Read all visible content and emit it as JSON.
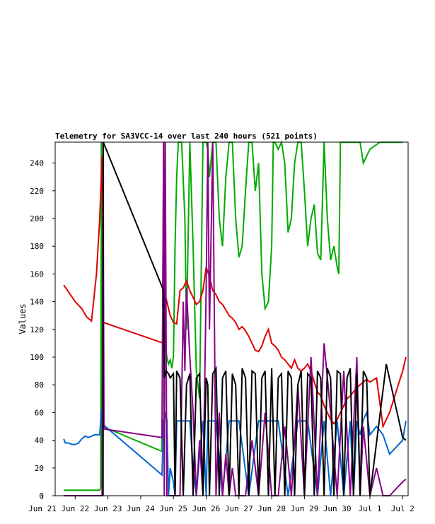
{
  "chart_data": {
    "type": "line",
    "title": "Telemetry for SA3VCC-14 over last 240 hours (521 points)",
    "xlabel": "",
    "ylabel": "Values",
    "ylim": [
      0,
      255
    ],
    "xlim": [
      0,
      11.6
    ],
    "yticks": [
      0,
      20,
      40,
      60,
      80,
      100,
      120,
      140,
      160,
      180,
      200,
      220,
      240
    ],
    "xticks": [
      {
        "x": 0,
        "label": "Jun 21"
      },
      {
        "x": 1,
        "label": "Jun 22"
      },
      {
        "x": 2,
        "label": "Jun 23"
      },
      {
        "x": 3,
        "label": "Jun 24"
      },
      {
        "x": 4,
        "label": "Jun 25"
      },
      {
        "x": 5,
        "label": "Jun 26"
      },
      {
        "x": 6,
        "label": "Jun 27"
      },
      {
        "x": 7,
        "label": "Jun 28"
      },
      {
        "x": 8,
        "label": "Jun 29"
      },
      {
        "x": 9,
        "label": "Jun 30"
      },
      {
        "x": 10,
        "label": "Jul 1"
      },
      {
        "x": 11,
        "label": "Jul 2"
      }
    ],
    "grid": false,
    "series": [
      {
        "color": "#00aa00",
        "x": [
          0.65,
          1.75,
          1.78,
          1.8,
          1.83,
          3.65,
          3.7,
          3.72,
          3.75,
          3.8,
          3.85,
          3.9,
          3.95,
          4.0,
          4.05,
          4.1,
          4.15,
          4.25,
          4.35,
          4.4,
          4.5,
          4.6,
          4.7,
          4.8,
          4.9,
          5.0,
          5.05,
          5.1,
          5.2,
          5.3,
          5.4,
          5.5,
          5.6,
          5.7,
          5.8,
          5.9,
          6.0,
          6.1,
          6.2,
          6.3,
          6.4,
          6.5,
          6.6,
          6.7,
          6.8,
          6.9,
          7.0,
          7.05,
          7.1,
          7.2,
          7.3,
          7.4,
          7.5,
          7.6,
          7.7,
          7.8,
          7.9,
          8.0,
          8.1,
          8.2,
          8.3,
          8.4,
          8.5,
          8.6,
          8.7,
          8.8,
          8.9,
          9.0,
          9.05,
          9.1,
          9.3,
          9.5,
          9.7,
          9.8,
          10.0,
          10.3,
          10.6,
          11.0
        ],
        "values": [
          4,
          4,
          6,
          255,
          50,
          32,
          255,
          150,
          110,
          100,
          95,
          98,
          92,
          100,
          180,
          230,
          255,
          255,
          200,
          120,
          255,
          180,
          90,
          70,
          255,
          255,
          250,
          230,
          255,
          255,
          200,
          180,
          230,
          255,
          255,
          200,
          172,
          180,
          220,
          255,
          255,
          220,
          240,
          160,
          135,
          140,
          180,
          255,
          255,
          250,
          255,
          240,
          190,
          200,
          240,
          255,
          255,
          220,
          180,
          200,
          210,
          175,
          170,
          255,
          200,
          170,
          180,
          165,
          160,
          255,
          255,
          255,
          255,
          240,
          250,
          255,
          255,
          255
        ]
      },
      {
        "color": "#dd0000",
        "x": [
          0.65,
          0.8,
          1.0,
          1.2,
          1.35,
          1.5,
          1.65,
          1.75,
          1.82,
          1.86,
          3.7,
          3.72,
          3.8,
          3.9,
          4.0,
          4.1,
          4.2,
          4.3,
          4.4,
          4.5,
          4.6,
          4.7,
          4.8,
          4.9,
          5.0,
          5.1,
          5.2,
          5.3,
          5.4,
          5.5,
          5.6,
          5.7,
          5.8,
          5.9,
          6.0,
          6.1,
          6.2,
          6.3,
          6.4,
          6.5,
          6.6,
          6.7,
          6.8,
          6.9,
          7.0,
          7.1,
          7.2,
          7.3,
          7.4,
          7.5,
          7.6,
          7.7,
          7.8,
          7.9,
          8.0,
          8.1,
          8.2,
          8.3,
          8.4,
          8.5,
          8.6,
          8.7,
          8.8,
          8.9,
          9.0,
          9.1,
          9.2,
          9.3,
          9.4,
          9.5,
          9.6,
          9.7,
          9.8,
          9.9,
          10.0,
          10.2,
          10.4,
          10.6,
          10.8,
          11.0,
          11.1
        ],
        "values": [
          152,
          147,
          140,
          135,
          129,
          126,
          160,
          200,
          245,
          125,
          110,
          148,
          140,
          130,
          125,
          124,
          148,
          150,
          155,
          148,
          143,
          138,
          140,
          148,
          165,
          158,
          148,
          145,
          140,
          138,
          134,
          130,
          128,
          125,
          120,
          122,
          119,
          115,
          110,
          105,
          104,
          108,
          115,
          120,
          110,
          108,
          105,
          100,
          98,
          95,
          92,
          98,
          92,
          90,
          92,
          95,
          90,
          82,
          75,
          72,
          65,
          60,
          55,
          52,
          55,
          60,
          65,
          70,
          72,
          75,
          78,
          80,
          82,
          84,
          82,
          85,
          50,
          60,
          75,
          90,
          100
        ]
      },
      {
        "color": "#0066cc",
        "x": [
          0.65,
          0.7,
          0.8,
          0.9,
          1.0,
          1.1,
          1.2,
          1.3,
          1.4,
          1.5,
          1.6,
          1.75,
          1.8,
          1.82,
          3.65,
          3.7,
          3.72,
          3.75,
          3.8,
          3.85,
          3.9,
          4.0,
          4.05,
          4.1,
          4.3,
          4.5,
          4.6,
          4.7,
          4.8,
          4.9,
          5.0,
          5.05,
          5.1,
          5.3,
          5.5,
          5.7,
          6.0,
          6.3,
          6.6,
          6.9,
          7.2,
          7.5,
          7.8,
          8.1,
          8.4,
          8.6,
          8.8,
          9.0,
          9.2,
          9.4,
          9.5,
          9.6,
          9.7,
          9.8,
          9.9,
          10.0,
          10.2,
          10.4,
          10.6,
          10.8,
          11.0,
          11.1
        ],
        "values": [
          41,
          38,
          38,
          37,
          37,
          38,
          41,
          43,
          42,
          43,
          44,
          44,
          62,
          52,
          15,
          55,
          50,
          60,
          55,
          0,
          20,
          10,
          0,
          54,
          54,
          54,
          20,
          0,
          30,
          54,
          0,
          54,
          54,
          54,
          0,
          54,
          54,
          0,
          54,
          54,
          54,
          0,
          54,
          54,
          0,
          54,
          0,
          54,
          0,
          54,
          0,
          54,
          44,
          55,
          60,
          44,
          50,
          44,
          30,
          35,
          40,
          54
        ]
      },
      {
        "color": "#880088",
        "x": [
          0.65,
          1.82,
          1.85,
          1.88,
          1.9,
          3.65,
          3.7,
          3.72,
          3.75,
          3.8,
          3.9,
          4.0,
          4.1,
          4.2,
          4.3,
          4.35,
          4.4,
          4.5,
          4.6,
          4.7,
          4.8,
          4.9,
          5.0,
          5.05,
          5.1,
          5.2,
          5.3,
          5.4,
          5.5,
          5.6,
          5.7,
          5.8,
          5.9,
          6.0,
          6.2,
          6.4,
          6.6,
          6.8,
          7.0,
          7.2,
          7.4,
          7.6,
          7.8,
          8.0,
          8.2,
          8.4,
          8.6,
          8.8,
          9.0,
          9.2,
          9.4,
          9.6,
          9.7,
          9.8,
          10.0,
          10.2,
          10.4,
          10.6,
          10.8,
          11.0,
          11.1
        ],
        "values": [
          0,
          0,
          255,
          50,
          48,
          42,
          255,
          0,
          255,
          0,
          0,
          0,
          0,
          0,
          140,
          90,
          150,
          100,
          60,
          0,
          40,
          0,
          150,
          255,
          120,
          255,
          0,
          60,
          0,
          30,
          0,
          20,
          0,
          0,
          0,
          40,
          0,
          60,
          0,
          0,
          50,
          0,
          80,
          0,
          100,
          0,
          110,
          60,
          0,
          90,
          0,
          100,
          0,
          50,
          0,
          20,
          0,
          0,
          5,
          10,
          12
        ]
      },
      {
        "color": "#000000",
        "x": [
          1.85,
          1.86,
          3.7,
          3.72,
          3.78,
          3.85,
          3.9,
          4.0,
          4.05,
          4.1,
          4.2,
          4.3,
          4.4,
          4.5,
          4.6,
          4.7,
          4.8,
          4.9,
          5.0,
          5.05,
          5.1,
          5.2,
          5.3,
          5.4,
          5.5,
          5.6,
          5.7,
          5.8,
          5.9,
          6.0,
          6.1,
          6.2,
          6.3,
          6.4,
          6.5,
          6.6,
          6.7,
          6.8,
          6.9,
          7.0,
          7.1,
          7.2,
          7.3,
          7.4,
          7.5,
          7.6,
          7.7,
          7.8,
          7.9,
          8.0,
          8.1,
          8.2,
          8.3,
          8.4,
          8.5,
          8.6,
          8.7,
          8.8,
          8.9,
          9.0,
          9.1,
          9.2,
          9.3,
          9.4,
          9.5,
          9.6,
          9.7,
          9.8,
          9.9,
          10.0,
          10.5,
          11.0,
          11.1
        ],
        "values": [
          0,
          255,
          148,
          85,
          90,
          88,
          85,
          88,
          0,
          90,
          85,
          0,
          80,
          88,
          0,
          85,
          88,
          0,
          85,
          80,
          0,
          88,
          92,
          0,
          85,
          90,
          0,
          88,
          80,
          0,
          92,
          85,
          0,
          90,
          88,
          0,
          85,
          90,
          0,
          92,
          0,
          85,
          88,
          0,
          90,
          85,
          0,
          80,
          90,
          0,
          88,
          85,
          0,
          90,
          85,
          0,
          92,
          85,
          0,
          90,
          88,
          0,
          85,
          92,
          0,
          88,
          0,
          90,
          85,
          0,
          95,
          42,
          40
        ]
      }
    ]
  }
}
